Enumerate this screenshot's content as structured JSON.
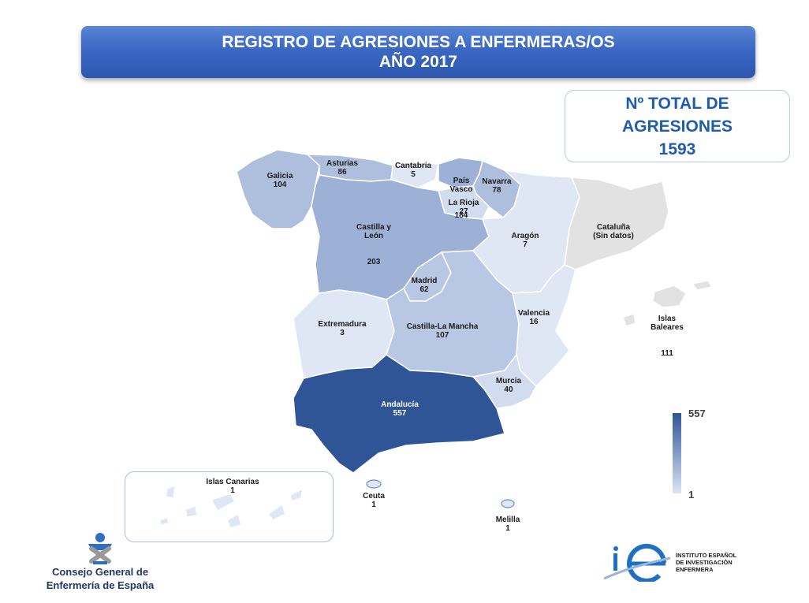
{
  "title": {
    "line1": "REGISTRO DE AGRESIONES A ENFERMERAS/OS",
    "line2": "AÑO 2017"
  },
  "total": {
    "line1": "Nº TOTAL DE",
    "line2": "AGRESIONES",
    "value": "1593"
  },
  "regions": {
    "galicia": {
      "name": "Galicia",
      "value": "104"
    },
    "asturias": {
      "name": "Asturias",
      "value": "86"
    },
    "cantabria": {
      "name": "Cantabria",
      "value": "5"
    },
    "pais_vasco": {
      "name": "País\nVasco",
      "value": "184"
    },
    "navarra": {
      "name": "Navarra",
      "value": "78"
    },
    "la_rioja": {
      "name": "La Rioja",
      "value": "27"
    },
    "castilla_leon": {
      "name": "Castilla y\nLeón",
      "value": "203"
    },
    "aragon": {
      "name": "Aragón",
      "value": "7"
    },
    "cataluna": {
      "name": "Cataluña\n(Sin datos)",
      "value": ""
    },
    "madrid": {
      "name": "Madrid",
      "value": "62"
    },
    "extremadura": {
      "name": "Extremadura",
      "value": "3"
    },
    "castilla_mancha": {
      "name": "Castilla-La Mancha",
      "value": "107"
    },
    "valencia": {
      "name": "Valencia",
      "value": "16"
    },
    "baleares": {
      "name": "Islas\nBaleares",
      "value": "111"
    },
    "murcia": {
      "name": "Murcia",
      "value": "40"
    },
    "andalucia": {
      "name": "Andalucía",
      "value": "557"
    },
    "canarias": {
      "name": "Islas Canarias",
      "value": "1"
    },
    "ceuta": {
      "name": "Ceuta",
      "value": "1"
    },
    "melilla": {
      "name": "Melilla",
      "value": "1"
    }
  },
  "legend": {
    "max": "557",
    "min": "1"
  },
  "colors": {
    "max": "#2f5597",
    "min": "#dbe4f4",
    "no_data": "#e2e2e2",
    "title_bar": "#3a68c2",
    "total_text": "#1f5cb0"
  },
  "footer": {
    "cge_line1": "Consejo General de",
    "cge_line2": "Enfermería de España",
    "ie_line1": "INSTITUTO ESPAÑOL",
    "ie_line2": "DE INVESTIGACIÓN",
    "ie_line3": "ENFERMERA"
  }
}
